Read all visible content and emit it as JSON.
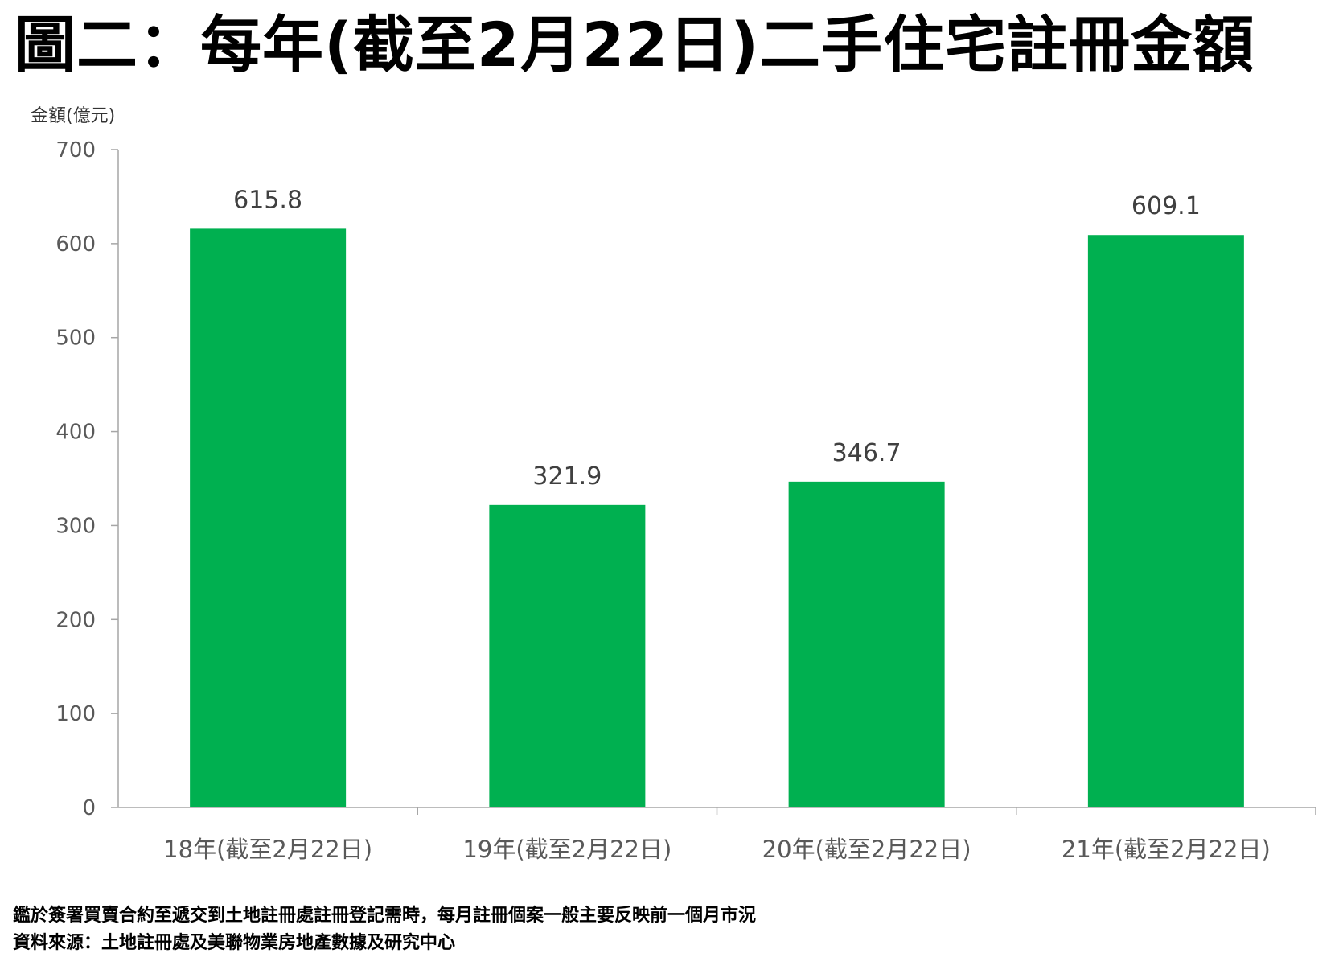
{
  "chart_data": {
    "type": "bar",
    "title": "圖二：每年(截至2月22日)二手住宅註冊金額",
    "ylabel": "金額(億元)",
    "xlabel": "",
    "categories": [
      "18年(截至2月22日)",
      "19年(截至2月22日)",
      "20年(截至2月22日)",
      "21年(截至2月22日)"
    ],
    "values": [
      615.8,
      321.9,
      346.7,
      609.1
    ],
    "data_labels": [
      "615.8",
      "321.9",
      "346.7",
      "609.1"
    ],
    "ylim": [
      0,
      700
    ],
    "yticks": [
      0,
      100,
      200,
      300,
      400,
      500,
      600,
      700
    ],
    "bar_color": "#00b050",
    "grid": false,
    "legend": "none"
  },
  "footer": {
    "note": "鑑於簽署買賣合約至遞交到土地註冊處註冊登記需時，每月註冊個案一般主要反映前一個月市況",
    "source": "資料來源：土地註冊處及美聯物業房地產數據及研究中心"
  }
}
